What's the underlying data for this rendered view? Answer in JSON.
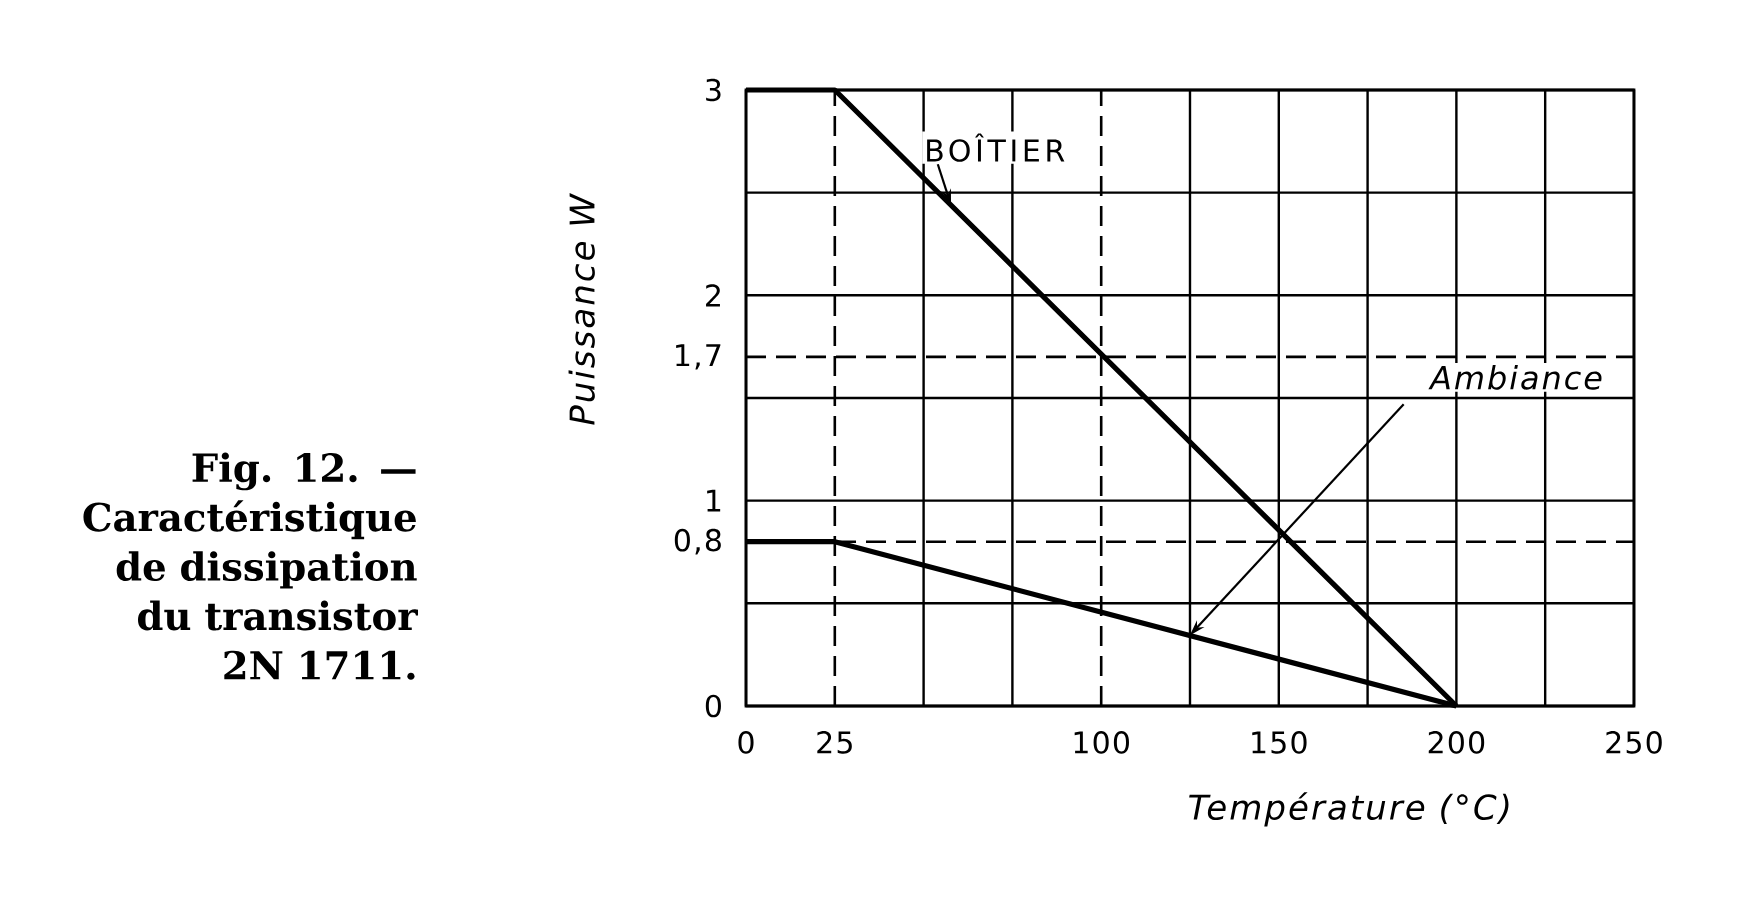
{
  "chart_data": {
    "type": "line",
    "title": "Fig. 12. — Caractéristique de dissipation du transistor 2N 1711.",
    "xlabel": "Température (°C)",
    "ylabel": "Puissance W",
    "xlim": [
      0,
      250
    ],
    "ylim": [
      0,
      3
    ],
    "xticks": [
      0,
      {
        "value": 50,
        "label": null
      },
      {
        "value": 75,
        "label": null
      },
      {
        "value": 125,
        "label": null
      },
      150,
      {
        "value": 175,
        "label": null
      },
      200,
      {
        "value": 225,
        "label": null
      },
      250
    ],
    "yticks": [
      0,
      {
        "value": 0.5,
        "label": null
      },
      1,
      {
        "value": 1.5,
        "label": null
      },
      2,
      {
        "value": 2.5,
        "label": null
      },
      3
    ],
    "grid": true,
    "marker": "none",
    "line_style": "solid",
    "ref_lines": [
      {
        "axis": "x",
        "value": 25,
        "label": "25",
        "color": "#000000",
        "line_style": "dashed"
      },
      {
        "axis": "x",
        "value": 100,
        "label": "100",
        "color": "#000000",
        "line_style": "dashed"
      },
      {
        "axis": "y",
        "value": 0.8,
        "label": "0,8",
        "color": "#000000",
        "line_style": "dashed"
      },
      {
        "axis": "y",
        "value": 1.7,
        "label": "1,7",
        "color": "#000000",
        "line_style": "dashed"
      }
    ],
    "series": [
      {
        "name": "BOÎTIER",
        "color": "#000000",
        "x": [
          0,
          25,
          200
        ],
        "values": [
          3,
          3,
          0
        ]
      },
      {
        "name": "Ambiance",
        "color": "#000000",
        "x": [
          0,
          25,
          200
        ],
        "values": [
          0.8,
          0.8,
          0
        ]
      }
    ]
  }
}
